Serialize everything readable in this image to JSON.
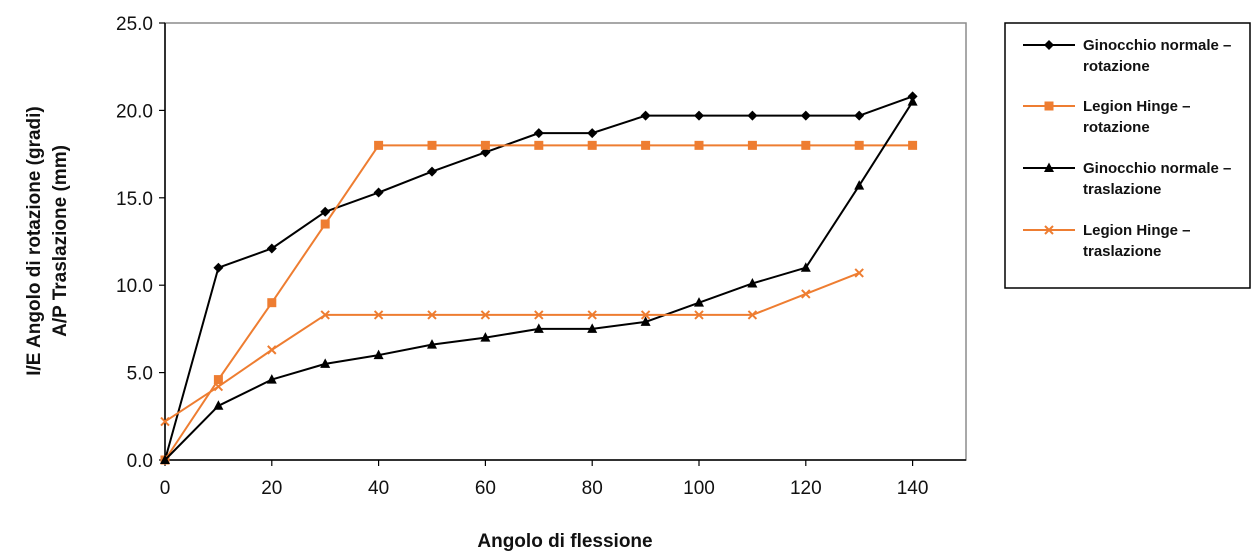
{
  "chart_data": {
    "type": "line",
    "title": "",
    "xlabel": "Angolo di flessione",
    "ylabel_lines": [
      "I/E Angolo di rotazione (gradi)",
      "A/P Traslazione (mm)"
    ],
    "xlim": [
      0,
      150
    ],
    "ylim": [
      0,
      25
    ],
    "x_ticks": [
      "0",
      "20",
      "40",
      "60",
      "80",
      "100",
      "120",
      "140"
    ],
    "y_ticks": [
      "0.0",
      "5.0",
      "10.0",
      "15.0",
      "20.0",
      "25.0"
    ],
    "grid": false,
    "legend_position": "right",
    "series": [
      {
        "name_lines": [
          "Ginocchio normale –",
          "rotazione"
        ],
        "color": "#000000",
        "marker": "diamond",
        "x": [
          0,
          10,
          20,
          30,
          40,
          50,
          60,
          70,
          80,
          90,
          100,
          110,
          120,
          130,
          140
        ],
        "y": [
          0.0,
          11.0,
          12.1,
          14.2,
          15.3,
          16.5,
          17.6,
          18.7,
          18.7,
          19.7,
          19.7,
          19.7,
          19.7,
          19.7,
          20.8
        ]
      },
      {
        "name_lines": [
          "Legion Hinge –",
          "rotazione"
        ],
        "color": "#ee7d31",
        "marker": "square",
        "x": [
          0,
          10,
          20,
          30,
          40,
          50,
          60,
          70,
          80,
          90,
          100,
          110,
          120,
          130,
          140
        ],
        "y": [
          0.0,
          4.6,
          9.0,
          13.5,
          18.0,
          18.0,
          18.0,
          18.0,
          18.0,
          18.0,
          18.0,
          18.0,
          18.0,
          18.0,
          18.0
        ]
      },
      {
        "name_lines": [
          "Ginocchio normale –",
          "traslazione"
        ],
        "color": "#000000",
        "marker": "triangle",
        "x": [
          0,
          10,
          20,
          30,
          40,
          50,
          60,
          70,
          80,
          90,
          100,
          110,
          120,
          130,
          140
        ],
        "y": [
          0.0,
          3.1,
          4.6,
          5.5,
          6.0,
          6.6,
          7.0,
          7.5,
          7.5,
          7.9,
          9.0,
          10.1,
          11.0,
          15.7,
          20.5
        ]
      },
      {
        "name_lines": [
          "Legion Hinge –",
          "traslazione"
        ],
        "color": "#ee7d31",
        "marker": "x",
        "x": [
          0,
          10,
          20,
          30,
          40,
          50,
          60,
          70,
          80,
          90,
          100,
          110,
          120,
          130
        ],
        "y": [
          2.2,
          4.2,
          6.3,
          8.3,
          8.3,
          8.3,
          8.3,
          8.3,
          8.3,
          8.3,
          8.3,
          8.3,
          9.5,
          10.7
        ]
      }
    ]
  }
}
